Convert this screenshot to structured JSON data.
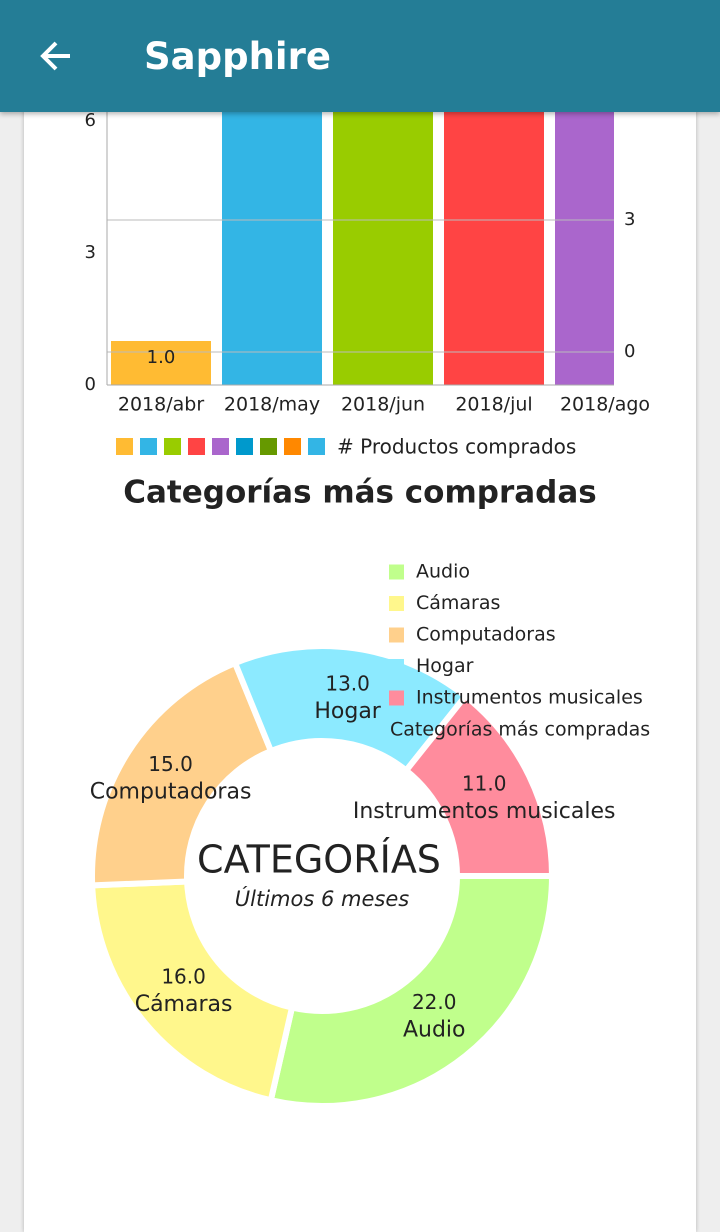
{
  "app_bar": {
    "title": "Sapphire"
  },
  "chart_data": [
    {
      "type": "bar",
      "categories": [
        "2018/abr",
        "2018/may",
        "2018/jun",
        "2018/jul",
        "2018/ago"
      ],
      "values": [
        1,
        7,
        7,
        7,
        7
      ],
      "value_labels": [
        "1.0",
        null,
        null,
        null,
        null
      ],
      "colors": [
        "#ffbb33",
        "#33b5e5",
        "#99cc00",
        "#ff4444",
        "#aa66cc"
      ],
      "series_name": "# Productos comprados",
      "legend_colors": [
        "#ffbb33",
        "#33b5e5",
        "#99cc00",
        "#ff4444",
        "#aa66cc",
        "#0099cc",
        "#669900",
        "#ff8800",
        "#33b5e5"
      ],
      "ylim": [
        0,
        6
      ],
      "yticks": [
        0,
        3,
        6
      ],
      "y2lim": [
        -0.75,
        5.25
      ],
      "y2ticks": [
        0,
        3
      ],
      "grid": true
    },
    {
      "type": "pie",
      "title": "Categorías más compradas",
      "categories": [
        "Audio",
        "Cámaras",
        "Computadoras",
        "Hogar",
        "Instrumentos musicales"
      ],
      "values": [
        22,
        16,
        15,
        13,
        11
      ],
      "value_labels": [
        "22.0",
        "16.0",
        "15.0",
        "13.0",
        "11.0"
      ],
      "colors": [
        "#c0ff8c",
        "#fff78c",
        "#ffd08c",
        "#8ceaff",
        "#ff8c9d"
      ],
      "legend_label": "Categorías más compradas",
      "center_title": "CATEGORÍAS",
      "center_subtitle": "Últimos 6 meses"
    }
  ]
}
